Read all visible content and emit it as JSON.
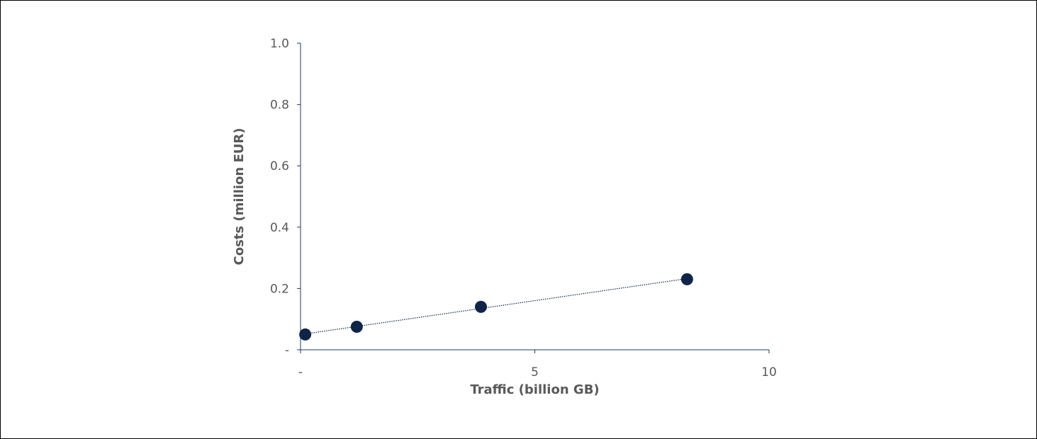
{
  "chart_data": {
    "type": "scatter",
    "xlabel": "Traffic (billion GB)",
    "ylabel": "Costs (million EUR)",
    "xlim": [
      0,
      10
    ],
    "ylim": [
      0,
      1.0
    ],
    "x_ticks": [
      0,
      5,
      10
    ],
    "x_tick_labels": [
      "-",
      "5",
      "10"
    ],
    "y_ticks": [
      0,
      0.2,
      0.4,
      0.6,
      0.8,
      1.0
    ],
    "y_tick_labels": [
      "-",
      "0.2",
      "0.4",
      "0.6",
      "0.8",
      "1.0"
    ],
    "grid": false,
    "trendline": "linear (dotted)",
    "series": [
      {
        "x": [
          0.1,
          1.2,
          3.85,
          8.25
        ],
        "y": [
          0.05,
          0.075,
          0.14,
          0.23
        ]
      }
    ],
    "colors": {
      "marker": "#0f2446",
      "trendline": "#0f2446",
      "axis": "#1f3864",
      "text": "#595959"
    }
  }
}
